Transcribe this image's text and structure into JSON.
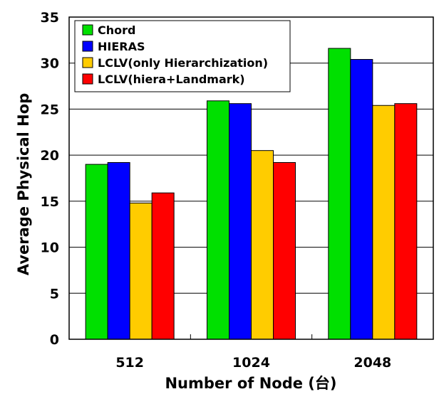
{
  "chart_data": {
    "type": "bar",
    "title": "",
    "xlabel": "Number of Node (台)",
    "ylabel": "Average Physical Hop",
    "categories": [
      "512",
      "1024",
      "2048"
    ],
    "ylim": [
      0,
      35
    ],
    "yticks": [
      0,
      5,
      10,
      15,
      20,
      25,
      30,
      35
    ],
    "grid": "horizontal",
    "legend_position": "top-left",
    "series": [
      {
        "name": "Chord",
        "color": "#00e000",
        "values": [
          19.0,
          25.9,
          31.6
        ]
      },
      {
        "name": "HIERAS",
        "color": "#0000ff",
        "values": [
          19.2,
          25.6,
          30.4
        ]
      },
      {
        "name": "LCLV(only Hierarchization)",
        "color": "#ffcc00",
        "values": [
          14.8,
          20.5,
          25.4
        ]
      },
      {
        "name": "LCLV(hiera+Landmark)",
        "color": "#ff0000",
        "values": [
          15.9,
          19.2,
          25.6
        ]
      }
    ]
  }
}
